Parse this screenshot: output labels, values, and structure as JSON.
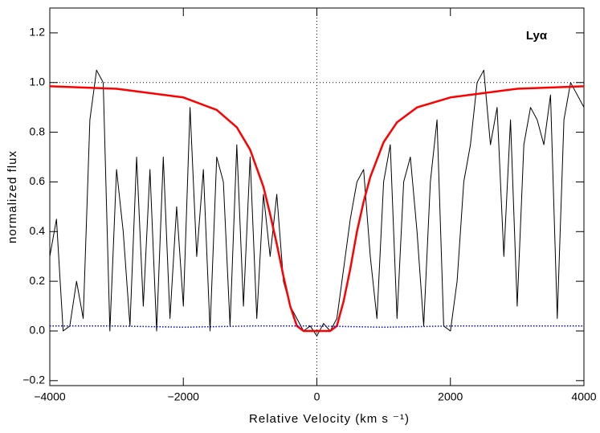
{
  "chart_data": {
    "type": "line",
    "xlabel": "Relative Velocity (km s ⁻¹)",
    "ylabel": "normalized flux",
    "annotation": "Lyα",
    "xlim": [
      -4000,
      4000
    ],
    "ylim": [
      -0.22,
      1.3
    ],
    "xticks": [
      {
        "value": -4000,
        "label": "−4000"
      },
      {
        "value": -2000,
        "label": "−2000"
      },
      0,
      2000,
      4000
    ],
    "yticks": [
      {
        "value": -0.2,
        "label": "−0.2"
      },
      {
        "value": 0,
        "label": "0.0"
      },
      {
        "value": 0.2,
        "label": "0.2"
      },
      {
        "value": 0.4,
        "label": "0.4"
      },
      {
        "value": 0.6,
        "label": "0.6"
      },
      {
        "value": 0.8,
        "label": "0.8"
      },
      {
        "value": 1,
        "label": "1.0"
      },
      {
        "value": 1.2,
        "label": "1.2"
      }
    ],
    "hline": 1,
    "vline": 0,
    "series": [
      {
        "color": "#000000",
        "width": 1,
        "dash": "none",
        "x": [
          -4000,
          -3900,
          -3800,
          -3700,
          -3600,
          -3500,
          -3400,
          -3300,
          -3200,
          -3100,
          -3000,
          -2900,
          -2800,
          -2700,
          -2600,
          -2500,
          -2400,
          -2300,
          -2200,
          -2100,
          -2000,
          -1900,
          -1800,
          -1700,
          -1600,
          -1500,
          -1400,
          -1300,
          -1200,
          -1100,
          -1000,
          -900,
          -800,
          -700,
          -600,
          -500,
          -400,
          -300,
          -200,
          -100,
          0,
          100,
          200,
          300,
          400,
          500,
          600,
          700,
          800,
          900,
          1000,
          1100,
          1200,
          1300,
          1400,
          1500,
          1600,
          1700,
          1800,
          1900,
          2000,
          2100,
          2200,
          2300,
          2400,
          2500,
          2600,
          2700,
          2800,
          2900,
          3000,
          3100,
          3200,
          3300,
          3400,
          3500,
          3600,
          3700,
          3800,
          3900,
          4000
        ],
        "values": [
          0.3,
          0.45,
          0.0,
          0.02,
          0.2,
          0.05,
          0.85,
          1.05,
          1.0,
          0.0,
          0.65,
          0.4,
          0.02,
          0.7,
          0.1,
          0.65,
          0.0,
          0.7,
          0.05,
          0.5,
          0.1,
          0.9,
          0.3,
          0.65,
          0.0,
          0.7,
          0.6,
          0.02,
          0.75,
          0.1,
          0.7,
          0.05,
          0.55,
          0.3,
          0.55,
          0.2,
          0.1,
          0.05,
          0.0,
          0.02,
          -0.02,
          0.03,
          0.0,
          0.05,
          0.25,
          0.45,
          0.6,
          0.65,
          0.3,
          0.05,
          0.6,
          0.75,
          0.05,
          0.6,
          0.7,
          0.4,
          0.02,
          0.6,
          0.85,
          0.02,
          0.0,
          0.2,
          0.6,
          0.75,
          1.0,
          1.05,
          0.75,
          0.9,
          0.3,
          0.85,
          0.1,
          0.75,
          0.9,
          0.85,
          0.75,
          0.95,
          0.05,
          0.85,
          1.0,
          0.95,
          0.9
        ]
      },
      {
        "color": "#ff0000",
        "width": 2.5,
        "dash": "none",
        "x": [
          -4000,
          -3000,
          -2000,
          -1500,
          -1200,
          -1000,
          -800,
          -700,
          -600,
          -500,
          -400,
          -300,
          -200,
          0,
          200,
          300,
          400,
          500,
          600,
          700,
          800,
          1000,
          1200,
          1500,
          2000,
          3000,
          4000
        ],
        "values": [
          0.985,
          0.975,
          0.94,
          0.89,
          0.82,
          0.73,
          0.58,
          0.47,
          0.35,
          0.22,
          0.1,
          0.02,
          0.0,
          0.0,
          0.0,
          0.02,
          0.12,
          0.25,
          0.4,
          0.52,
          0.62,
          0.76,
          0.84,
          0.9,
          0.94,
          0.975,
          0.985
        ]
      },
      {
        "color": "#0000ff",
        "width": 1.5,
        "dash": "1.5 2",
        "x": [
          -4000,
          -3000,
          -2000,
          -1000,
          0,
          1000,
          2000,
          3000,
          4000
        ],
        "values": [
          0.02,
          0.02,
          0.015,
          0.02,
          0.02,
          0.015,
          0.02,
          0.02,
          0.02
        ]
      }
    ]
  }
}
